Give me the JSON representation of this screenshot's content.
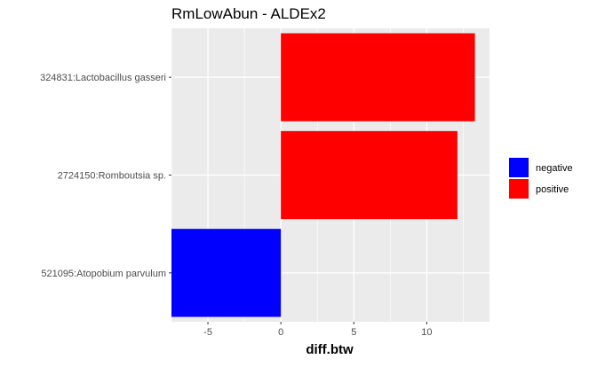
{
  "chart_data": {
    "type": "bar",
    "orientation": "horizontal",
    "title": "RmLowAbun - ALDEx2",
    "xlabel": "diff.btw",
    "ylabel": "",
    "categories": [
      "324831:Lactobacillus gasseri",
      "2724150:Romboutsia sp.",
      "521095:Atopobium parvulum"
    ],
    "values": [
      13.3,
      12.1,
      -7.5
    ],
    "bar_groups": [
      "positive",
      "positive",
      "negative"
    ],
    "xlim": [
      -7.5,
      14.3
    ],
    "x_ticks": [
      -5,
      0,
      5,
      10
    ],
    "x_tick_labels": [
      "-5",
      "0",
      "5",
      "10"
    ],
    "grid": true,
    "legend_position": "right",
    "legend": [
      {
        "label": "negative",
        "color": "#0000FF"
      },
      {
        "label": "positive",
        "color": "#FF0000"
      }
    ],
    "panel_background": "#EBEBEB",
    "grid_color": "#FFFFFF"
  }
}
